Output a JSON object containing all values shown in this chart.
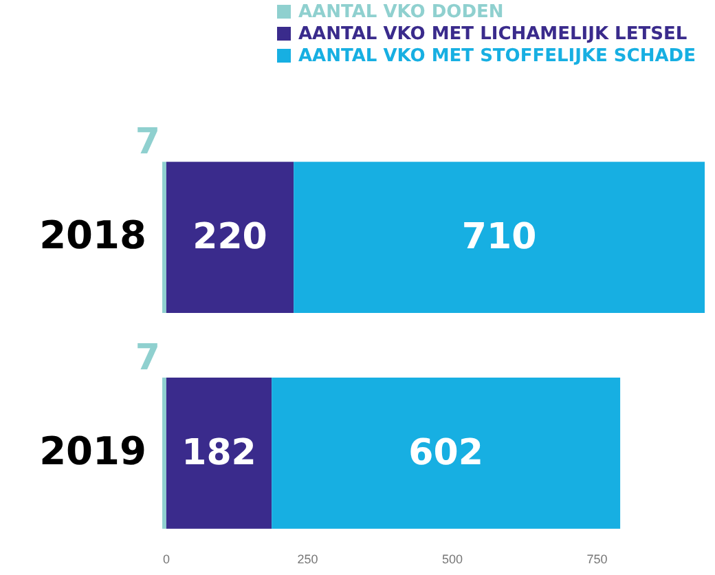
{
  "chart_data": {
    "type": "bar",
    "orientation": "horizontal",
    "stacked": true,
    "categories": [
      "2018",
      "2019"
    ],
    "series": [
      {
        "name": "AANTAL VKO DODEN",
        "color": "#8fd0cf",
        "values": [
          7,
          7
        ]
      },
      {
        "name": "AANTAL VKO MET LICHAMELIJK LETSEL",
        "color": "#3a2b8c",
        "values": [
          220,
          182
        ]
      },
      {
        "name": "AANTAL VKO MET STOFFELIJKE SCHADE",
        "color": "#17afe2",
        "values": [
          710,
          602
        ]
      }
    ],
    "xlim": [
      0,
      950
    ],
    "xticks": [
      0,
      250,
      500,
      750
    ],
    "data_labels": true,
    "legend": "top right",
    "grid": false
  }
}
